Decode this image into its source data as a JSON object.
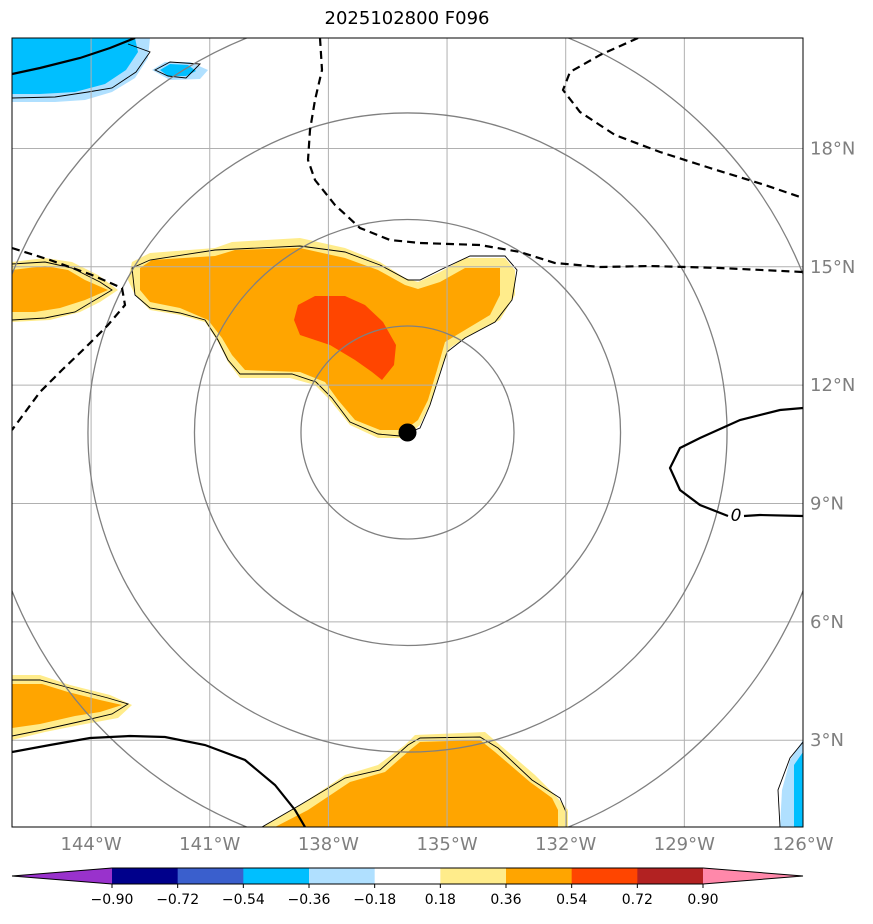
{
  "title": "2025102800 F096",
  "chart_data": {
    "type": "map-contour",
    "title": "2025102800 F096",
    "lon_range": [
      -146,
      -126
    ],
    "lat_range": [
      0.8,
      20.8
    ],
    "lon_ticks": [
      -144,
      -141,
      -138,
      -135,
      -132,
      -129,
      -126
    ],
    "lat_ticks": [
      3,
      6,
      9,
      12,
      15,
      18
    ],
    "lon_tick_labels": [
      "144°W",
      "141°W",
      "138°W",
      "135°W",
      "132°W",
      "129°W",
      "126°W"
    ],
    "lat_tick_labels": [
      "3°N",
      "6°N",
      "9°N",
      "12°N",
      "15°N",
      "18°N"
    ],
    "center": {
      "lon": -136.0,
      "lat": 10.8
    },
    "range_rings_deg": [
      2.7,
      5.4,
      8.1,
      10.8
    ],
    "zero_contour_label": "0",
    "colorbar": {
      "levels": [
        -0.9,
        -0.72,
        -0.54,
        -0.36,
        -0.18,
        0.18,
        0.36,
        0.54,
        0.72,
        0.9
      ],
      "tick_labels": [
        "−0.90",
        "−0.72",
        "−0.54",
        "−0.36",
        "−0.18",
        "0.18",
        "0.36",
        "0.54",
        "0.72",
        "0.90"
      ],
      "colors": [
        "#9932cc",
        "#00008b",
        "#3a5fcd",
        "#00bfff",
        "#b0e0ff",
        "#ffffff",
        "#ffec8b",
        "#ffa500",
        "#ff4500",
        "#b22222",
        "#ff88aa"
      ],
      "extend": "both"
    },
    "shading_levels": {
      "light_yellow": "0.18 to 0.36",
      "orange": "0.36 to 0.54",
      "red_orange": "0.54 to 0.72",
      "light_blue": "-0.36 to -0.18",
      "deep_sky_blue": "-0.54 to -0.36"
    }
  }
}
